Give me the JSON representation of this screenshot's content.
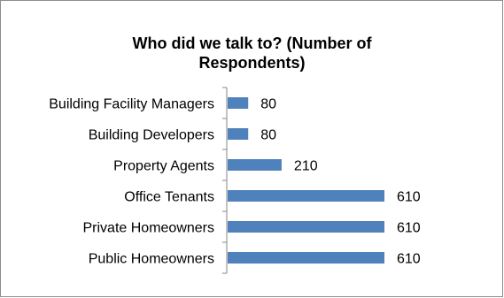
{
  "chart_data": {
    "type": "bar",
    "orientation": "horizontal",
    "title_lines": [
      "Who did we talk to? (Number of",
      "Respondents)"
    ],
    "categories": [
      "Building Facility Managers",
      "Building Developers",
      "Property Agents",
      "Office Tenants",
      "Private Homeowners",
      "Public Homeowners"
    ],
    "values": [
      80,
      80,
      210,
      610,
      610,
      610
    ],
    "xlim": [
      0,
      610
    ],
    "xlabel": "",
    "ylabel": "",
    "grid": false,
    "legend": "none",
    "bar_color": "#4f81bd",
    "axis_color": "#868686"
  }
}
